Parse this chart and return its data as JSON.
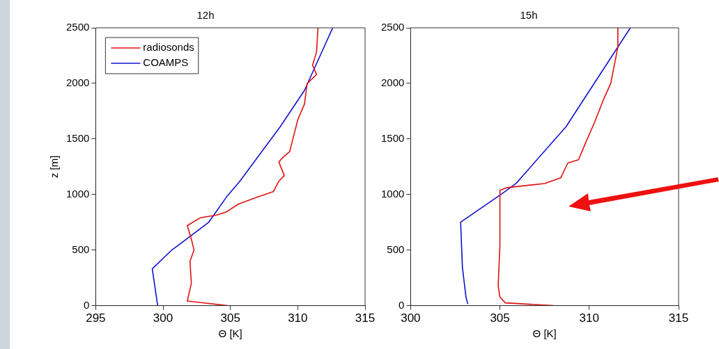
{
  "chart_data": [
    {
      "type": "line",
      "title": "12h",
      "xlabel": "Θ [K]",
      "ylabel": "z [m]",
      "xlim": [
        295,
        315
      ],
      "xticks": [
        295,
        300,
        305,
        310,
        315
      ],
      "ylim": [
        0,
        2500
      ],
      "yticks": [
        0,
        500,
        1000,
        1500,
        2000,
        2500
      ],
      "legend": "top left",
      "grid": false,
      "marker": "none",
      "line_style": "solid",
      "series": [
        {
          "name": "radiosonds",
          "color": "#e01010",
          "x": [
            304.8,
            301.8,
            302.1,
            302.0,
            302.3,
            302.1,
            301.8,
            302.75,
            304.0,
            304.7,
            305.6,
            307.0,
            308.2,
            308.6,
            309.0,
            308.6,
            308.9,
            309.4,
            309.7,
            310.0,
            310.5,
            310.7,
            311.4,
            311.1,
            311.4,
            311.5
          ],
          "values": [
            0,
            41,
            200,
            400,
            500,
            600,
            720,
            790,
            816,
            843,
            914,
            976,
            1027,
            1119,
            1170,
            1293,
            1334,
            1385,
            1528,
            1671,
            1814,
            1998,
            2080,
            2162,
            2285,
            2500
          ]
        },
        {
          "name": "COAMPS",
          "color": "#1010d0",
          "x": [
            299.6,
            299.2,
            300.6,
            303.4,
            304.7,
            305.7,
            308.7,
            310.5,
            312.6
          ],
          "values": [
            0,
            331,
            495,
            751,
            976,
            1119,
            1610,
            1937,
            2500
          ]
        }
      ]
    },
    {
      "type": "line",
      "title": "15h",
      "xlabel": "Θ [K]",
      "xlim": [
        300,
        315
      ],
      "xticks": [
        300,
        305,
        310,
        315
      ],
      "ylim": [
        0,
        2500
      ],
      "yticks": [
        0,
        500,
        1000,
        1500,
        2000,
        2500
      ],
      "grid": false,
      "marker": "none",
      "line_style": "solid",
      "series": [
        {
          "color": "#e01010",
          "x": [
            308.0,
            305.3,
            305.0,
            304.9,
            305.0,
            305.0,
            305.4,
            307.5,
            308.4,
            308.8,
            309.4,
            309.8,
            310.3,
            310.8,
            311.2,
            311.6,
            311.6
          ],
          "values": [
            0,
            25,
            76,
            178,
            546,
            1037,
            1062,
            1099,
            1150,
            1283,
            1313,
            1467,
            1651,
            1856,
            1999,
            2326,
            2500
          ]
        },
        {
          "color": "#1010d0",
          "x": [
            303.2,
            303.1,
            302.9,
            302.8,
            305.1,
            305.9,
            308.7,
            312.3
          ],
          "values": [
            14,
            76,
            342,
            751,
            1006,
            1099,
            1610,
            2500
          ]
        }
      ]
    }
  ]
}
